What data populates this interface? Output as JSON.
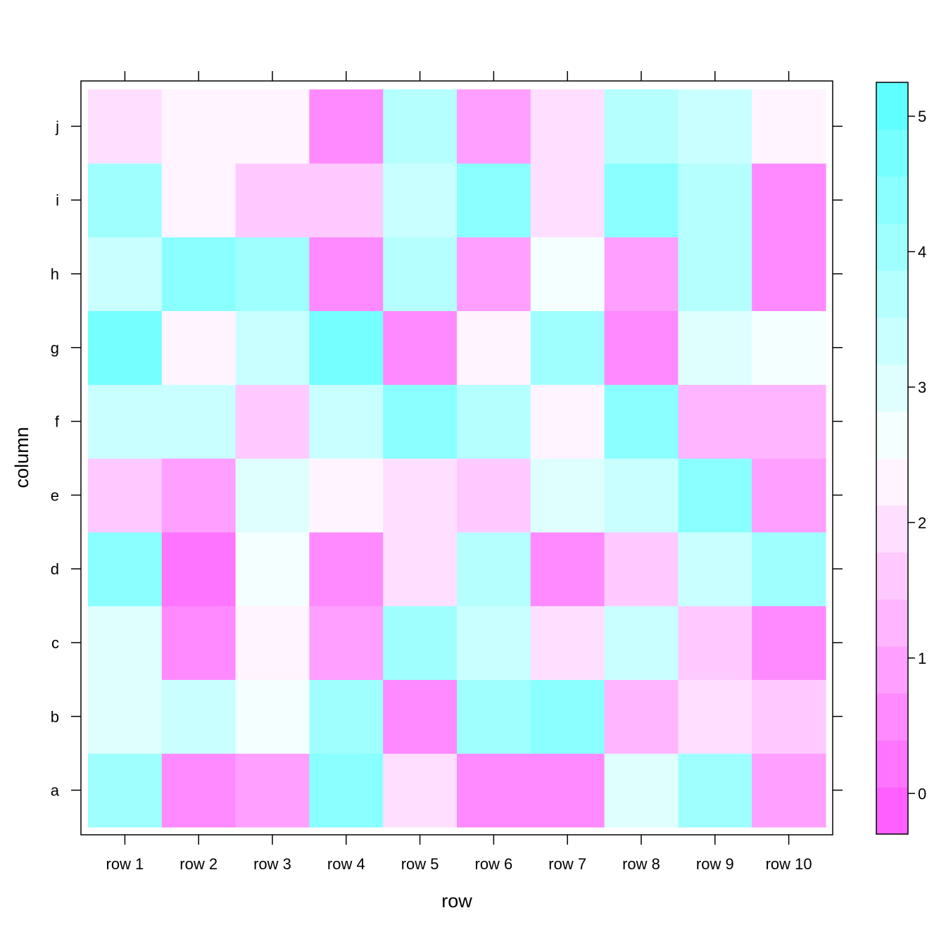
{
  "chart_data": {
    "type": "heatmap",
    "title": "",
    "xlabel": "row",
    "ylabel": "column",
    "x_categories": [
      "row 1",
      "row 2",
      "row 3",
      "row 4",
      "row 5",
      "row 6",
      "row 7",
      "row 8",
      "row 9",
      "row 10"
    ],
    "y_categories": [
      "a",
      "b",
      "c",
      "d",
      "e",
      "f",
      "g",
      "h",
      "i",
      "j"
    ],
    "values": [
      [
        4.0,
        0.5,
        1.0,
        4.5,
        2.0,
        0.5,
        0.5,
        3.0,
        4.0,
        1.0
      ],
      [
        3.0,
        3.3,
        2.5,
        4.2,
        0.7,
        3.9,
        4.3,
        1.1,
        2.1,
        1.7
      ],
      [
        3.0,
        0.6,
        2.4,
        1.0,
        4.0,
        3.3,
        2.0,
        3.5,
        1.5,
        0.5
      ],
      [
        4.3,
        0.2,
        2.7,
        0.5,
        1.9,
        3.7,
        0.6,
        1.6,
        3.5,
        3.9
      ],
      [
        1.6,
        0.8,
        3.0,
        2.3,
        1.9,
        1.6,
        3.1,
        3.3,
        4.5,
        0.9
      ],
      [
        3.3,
        3.3,
        1.5,
        3.5,
        4.4,
        3.8,
        2.4,
        4.5,
        1.2,
        1.2
      ],
      [
        4.7,
        2.4,
        3.2,
        4.8,
        0.5,
        2.4,
        4.2,
        0.4,
        3.1,
        2.7
      ],
      [
        3.5,
        4.5,
        4.2,
        0.5,
        3.7,
        1.0,
        2.7,
        1.0,
        3.8,
        0.7
      ],
      [
        4.2,
        2.3,
        1.5,
        1.5,
        3.3,
        4.3,
        2.0,
        4.3,
        3.6,
        0.4
      ],
      [
        1.9,
        2.3,
        2.3,
        0.5,
        3.6,
        1.0,
        2.0,
        3.7,
        3.5,
        2.4
      ]
    ],
    "zlim": [
      -0.3,
      5.25
    ],
    "colorbar_ticks": [
      "0",
      "1",
      "2",
      "3",
      "4",
      "5"
    ],
    "colorbar_levels": 16,
    "palette": {
      "low": "#ff55ff",
      "mid": "#ffffff",
      "high": "#55ffff"
    },
    "legend_position": "right"
  }
}
